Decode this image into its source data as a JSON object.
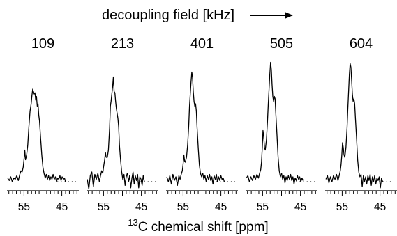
{
  "chart_data": {
    "type": "line",
    "header": "decoupling field [kHz]",
    "xlabel_prefix": "13",
    "xlabel_main": "C chemical shift [ppm]",
    "x_range": [
      59.5,
      40.5
    ],
    "x_ticks": [
      55,
      45
    ],
    "series": [
      {
        "name": "109",
        "points": [
          [
            59.3,
            0.03
          ],
          [
            58.9,
            0.01
          ],
          [
            58.5,
            0.04
          ],
          [
            58.1,
            0.0
          ],
          [
            57.7,
            0.03
          ],
          [
            57.3,
            0.02
          ],
          [
            56.9,
            0.05
          ],
          [
            56.5,
            0.01
          ],
          [
            56.1,
            0.06
          ],
          [
            55.8,
            0.09
          ],
          [
            55.5,
            0.08
          ],
          [
            55.2,
            0.12
          ],
          [
            55.0,
            0.18
          ],
          [
            54.8,
            0.26
          ],
          [
            54.6,
            0.18
          ],
          [
            54.3,
            0.22
          ],
          [
            54.0,
            0.3
          ],
          [
            53.7,
            0.45
          ],
          [
            53.4,
            0.58
          ],
          [
            53.1,
            0.64
          ],
          [
            52.9,
            0.71
          ],
          [
            52.7,
            0.76
          ],
          [
            52.5,
            0.74
          ],
          [
            52.3,
            0.72
          ],
          [
            52.1,
            0.73
          ],
          [
            51.9,
            0.67
          ],
          [
            51.7,
            0.7
          ],
          [
            51.5,
            0.62
          ],
          [
            51.3,
            0.64
          ],
          [
            51.1,
            0.55
          ],
          [
            50.9,
            0.5
          ],
          [
            50.6,
            0.36
          ],
          [
            50.3,
            0.22
          ],
          [
            50.0,
            0.12
          ],
          [
            49.7,
            0.07
          ],
          [
            49.4,
            0.03
          ],
          [
            49.1,
            0.06
          ],
          [
            48.8,
            0.02
          ],
          [
            48.5,
            0.05
          ],
          [
            48.2,
            0.01
          ],
          [
            47.9,
            0.04
          ],
          [
            47.6,
            0.02
          ],
          [
            47.3,
            0.06
          ],
          [
            47.0,
            0.02
          ],
          [
            46.7,
            0.04
          ],
          [
            46.4,
            0.0
          ],
          [
            46.1,
            0.03
          ],
          [
            45.8,
            0.02
          ],
          [
            45.5,
            0.05
          ],
          [
            45.2,
            0.01
          ],
          [
            44.9,
            0.04
          ],
          [
            44.6,
            0.02
          ],
          [
            44.3,
            0.03
          ],
          [
            44.0,
            0.0
          ]
        ]
      },
      {
        "name": "213",
        "points": [
          [
            59.3,
            0.02
          ],
          [
            58.9,
            -0.06
          ],
          [
            58.5,
            0.05
          ],
          [
            58.1,
            0.08
          ],
          [
            57.7,
            -0.04
          ],
          [
            57.3,
            0.06
          ],
          [
            56.9,
            0.02
          ],
          [
            56.5,
            0.07
          ],
          [
            56.1,
            0.0
          ],
          [
            55.8,
            0.05
          ],
          [
            55.5,
            0.09
          ],
          [
            55.2,
            0.07
          ],
          [
            55.0,
            0.12
          ],
          [
            54.7,
            0.18
          ],
          [
            54.5,
            0.24
          ],
          [
            54.3,
            0.2
          ],
          [
            54.0,
            0.2
          ],
          [
            53.7,
            0.26
          ],
          [
            53.4,
            0.44
          ],
          [
            53.2,
            0.62
          ],
          [
            53.0,
            0.66
          ],
          [
            52.8,
            0.72
          ],
          [
            52.6,
            0.78
          ],
          [
            52.4,
            0.86
          ],
          [
            52.2,
            0.74
          ],
          [
            52.0,
            0.73
          ],
          [
            51.8,
            0.66
          ],
          [
            51.6,
            0.6
          ],
          [
            51.4,
            0.56
          ],
          [
            51.2,
            0.52
          ],
          [
            51.0,
            0.45
          ],
          [
            50.8,
            0.3
          ],
          [
            50.5,
            0.18
          ],
          [
            50.2,
            0.08
          ],
          [
            49.9,
            0.02
          ],
          [
            49.6,
            0.06
          ],
          [
            49.3,
            -0.03
          ],
          [
            49.0,
            0.04
          ],
          [
            48.7,
            0.07
          ],
          [
            48.4,
            0.0
          ],
          [
            48.1,
            0.05
          ],
          [
            47.8,
            -0.05
          ],
          [
            47.5,
            0.03
          ],
          [
            47.2,
            0.08
          ],
          [
            46.9,
            -0.02
          ],
          [
            46.6,
            0.05
          ],
          [
            46.3,
            0.01
          ],
          [
            46.0,
            0.06
          ],
          [
            45.7,
            -0.05
          ],
          [
            45.4,
            0.04
          ],
          [
            45.1,
            0.02
          ],
          [
            44.8,
            -0.03
          ],
          [
            44.5,
            0.05
          ],
          [
            44.2,
            0.0
          ]
        ]
      },
      {
        "name": "401",
        "points": [
          [
            59.3,
            0.04
          ],
          [
            58.9,
            0.0
          ],
          [
            58.5,
            0.05
          ],
          [
            58.1,
            -0.02
          ],
          [
            57.7,
            0.06
          ],
          [
            57.3,
            0.01
          ],
          [
            56.9,
            0.04
          ],
          [
            56.5,
            -0.03
          ],
          [
            56.1,
            0.05
          ],
          [
            55.8,
            0.02
          ],
          [
            55.5,
            0.06
          ],
          [
            55.2,
            0.09
          ],
          [
            55.0,
            0.14
          ],
          [
            54.8,
            0.22
          ],
          [
            54.6,
            0.17
          ],
          [
            54.4,
            0.16
          ],
          [
            54.1,
            0.2
          ],
          [
            53.8,
            0.3
          ],
          [
            53.5,
            0.46
          ],
          [
            53.3,
            0.62
          ],
          [
            53.1,
            0.72
          ],
          [
            52.9,
            0.82
          ],
          [
            52.7,
            0.9
          ],
          [
            52.5,
            0.86
          ],
          [
            52.3,
            0.74
          ],
          [
            52.1,
            0.66
          ],
          [
            51.9,
            0.62
          ],
          [
            51.7,
            0.64
          ],
          [
            51.5,
            0.58
          ],
          [
            51.3,
            0.44
          ],
          [
            51.0,
            0.28
          ],
          [
            50.7,
            0.14
          ],
          [
            50.4,
            0.07
          ],
          [
            50.1,
            0.04
          ],
          [
            49.8,
            0.07
          ],
          [
            49.5,
            0.02
          ],
          [
            49.2,
            0.05
          ],
          [
            48.9,
            0.0
          ],
          [
            48.6,
            0.05
          ],
          [
            48.3,
            0.02
          ],
          [
            48.0,
            0.06
          ],
          [
            47.7,
            0.01
          ],
          [
            47.4,
            0.04
          ],
          [
            47.1,
            -0.02
          ],
          [
            46.8,
            0.05
          ],
          [
            46.5,
            0.02
          ],
          [
            46.2,
            0.06
          ],
          [
            45.9,
            0.0
          ],
          [
            45.6,
            0.04
          ],
          [
            45.3,
            0.01
          ],
          [
            45.0,
            0.05
          ],
          [
            44.7,
            0.02
          ],
          [
            44.4,
            0.03
          ],
          [
            44.1,
            0.0
          ]
        ]
      },
      {
        "name": "505",
        "points": [
          [
            59.3,
            0.03
          ],
          [
            58.9,
            0.05
          ],
          [
            58.5,
            0.0
          ],
          [
            58.1,
            0.04
          ],
          [
            57.7,
            0.01
          ],
          [
            57.3,
            0.05
          ],
          [
            56.9,
            0.02
          ],
          [
            56.5,
            0.06
          ],
          [
            56.1,
            0.03
          ],
          [
            55.8,
            0.07
          ],
          [
            55.5,
            0.1
          ],
          [
            55.3,
            0.16
          ],
          [
            55.1,
            0.28
          ],
          [
            54.9,
            0.42
          ],
          [
            54.7,
            0.37
          ],
          [
            54.5,
            0.28
          ],
          [
            54.3,
            0.26
          ],
          [
            54.0,
            0.34
          ],
          [
            53.7,
            0.5
          ],
          [
            53.5,
            0.64
          ],
          [
            53.3,
            0.76
          ],
          [
            53.1,
            0.88
          ],
          [
            52.9,
            0.98
          ],
          [
            52.7,
            0.92
          ],
          [
            52.5,
            0.8
          ],
          [
            52.3,
            0.7
          ],
          [
            52.1,
            0.66
          ],
          [
            51.9,
            0.7
          ],
          [
            51.7,
            0.68
          ],
          [
            51.5,
            0.55
          ],
          [
            51.2,
            0.38
          ],
          [
            50.9,
            0.2
          ],
          [
            50.6,
            0.09
          ],
          [
            50.3,
            0.04
          ],
          [
            50.0,
            0.07
          ],
          [
            49.7,
            0.02
          ],
          [
            49.4,
            0.05
          ],
          [
            49.1,
            -0.01
          ],
          [
            48.8,
            0.04
          ],
          [
            48.5,
            0.01
          ],
          [
            48.2,
            0.05
          ],
          [
            47.9,
            0.02
          ],
          [
            47.6,
            0.06
          ],
          [
            47.3,
            0.01
          ],
          [
            47.0,
            0.04
          ],
          [
            46.7,
            -0.02
          ],
          [
            46.4,
            0.03
          ],
          [
            46.1,
            0.01
          ],
          [
            45.8,
            0.05
          ],
          [
            45.5,
            0.02
          ],
          [
            45.2,
            0.04
          ],
          [
            44.9,
            0.0
          ],
          [
            44.6,
            0.03
          ],
          [
            44.3,
            0.01
          ]
        ]
      },
      {
        "name": "604",
        "points": [
          [
            59.3,
            0.02
          ],
          [
            58.9,
            0.05
          ],
          [
            58.5,
            -0.01
          ],
          [
            58.1,
            0.04
          ],
          [
            57.7,
            0.0
          ],
          [
            57.3,
            0.05
          ],
          [
            56.9,
            0.02
          ],
          [
            56.5,
            0.06
          ],
          [
            56.1,
            0.01
          ],
          [
            55.8,
            0.05
          ],
          [
            55.5,
            0.09
          ],
          [
            55.3,
            0.14
          ],
          [
            55.1,
            0.22
          ],
          [
            54.9,
            0.32
          ],
          [
            54.7,
            0.28
          ],
          [
            54.5,
            0.22
          ],
          [
            54.3,
            0.2
          ],
          [
            54.0,
            0.28
          ],
          [
            53.7,
            0.44
          ],
          [
            53.5,
            0.6
          ],
          [
            53.3,
            0.74
          ],
          [
            53.1,
            0.88
          ],
          [
            52.9,
            0.97
          ],
          [
            52.7,
            0.94
          ],
          [
            52.5,
            0.84
          ],
          [
            52.3,
            0.72
          ],
          [
            52.1,
            0.66
          ],
          [
            51.9,
            0.68
          ],
          [
            51.7,
            0.64
          ],
          [
            51.5,
            0.52
          ],
          [
            51.2,
            0.36
          ],
          [
            50.9,
            0.18
          ],
          [
            50.6,
            0.08
          ],
          [
            50.3,
            0.04
          ],
          [
            50.0,
            0.06
          ],
          [
            49.7,
            -0.04
          ],
          [
            49.4,
            0.05
          ],
          [
            49.1,
            0.0
          ],
          [
            48.8,
            0.04
          ],
          [
            48.5,
            -0.02
          ],
          [
            48.2,
            0.05
          ],
          [
            47.9,
            0.01
          ],
          [
            47.6,
            0.06
          ],
          [
            47.3,
            -0.03
          ],
          [
            47.0,
            0.04
          ],
          [
            46.7,
            0.0
          ],
          [
            46.4,
            0.05
          ],
          [
            46.1,
            -0.02
          ],
          [
            45.8,
            0.03
          ],
          [
            45.5,
            0.01
          ],
          [
            45.2,
            0.04
          ],
          [
            44.9,
            -0.05
          ],
          [
            44.6,
            0.03
          ],
          [
            44.3,
            0.0
          ]
        ]
      }
    ]
  }
}
